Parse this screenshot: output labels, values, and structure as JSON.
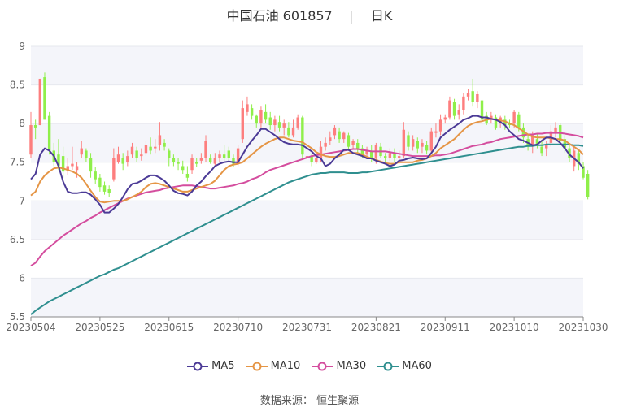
{
  "header": {
    "stock_name": "中国石油 601857",
    "period": "日K"
  },
  "source": {
    "label": "数据来源：",
    "provider": "恒生聚源"
  },
  "colors": {
    "up": "#fd7e7e",
    "down": "#8fef4a",
    "ma5": "#4b3a96",
    "ma10": "#e59545",
    "ma30": "#d44d9e",
    "ma60": "#2f8f8f",
    "grid": "#e6e8ee",
    "band": "#f4f5fa",
    "axis": "#888888"
  },
  "chart_data": {
    "type": "candlestick",
    "title": "中国石油 601857 日K",
    "xlabel": "",
    "ylabel": "",
    "ylim": [
      5.5,
      9
    ],
    "yticks": [
      5.5,
      6,
      6.5,
      7,
      7.5,
      8,
      8.5,
      9
    ],
    "xtick_labels": [
      "20230504",
      "20230525",
      "20230615",
      "20230710",
      "20230731",
      "20230821",
      "20230911",
      "20231010",
      "20231030"
    ],
    "xtick_index": [
      0,
      15,
      30,
      45,
      60,
      75,
      90,
      105,
      120
    ],
    "grid": true,
    "legend": [
      "MA5",
      "MA10",
      "MA30",
      "MA60"
    ],
    "legend_position": "bottom",
    "candles": [
      [
        7.6,
        7.98,
        7.55,
        8.15
      ],
      [
        7.98,
        7.95,
        7.8,
        8.05
      ],
      [
        7.98,
        8.58,
        7.98,
        8.58
      ],
      [
        8.6,
        8.05,
        8.05,
        8.66
      ],
      [
        8.1,
        7.65,
        7.6,
        8.15
      ],
      [
        7.65,
        7.5,
        7.45,
        7.75
      ],
      [
        7.6,
        7.45,
        7.4,
        7.8
      ],
      [
        7.58,
        7.38,
        7.3,
        7.7
      ],
      [
        7.4,
        7.45,
        7.33,
        7.55
      ],
      [
        7.45,
        7.48,
        7.4,
        7.7
      ],
      [
        7.4,
        7.45,
        7.3,
        7.5
      ],
      [
        7.6,
        7.68,
        7.55,
        7.78
      ],
      [
        7.65,
        7.55,
        7.5,
        7.68
      ],
      [
        7.55,
        7.38,
        7.3,
        7.62
      ],
      [
        7.38,
        7.28,
        7.22,
        7.44
      ],
      [
        7.3,
        7.18,
        7.12,
        7.35
      ],
      [
        7.2,
        7.12,
        7.08,
        7.25
      ],
      [
        7.15,
        7.1,
        7.05,
        7.2
      ],
      [
        7.28,
        7.55,
        7.25,
        7.68
      ],
      [
        7.5,
        7.6,
        7.48,
        7.7
      ],
      [
        7.55,
        7.48,
        7.4,
        7.62
      ],
      [
        7.5,
        7.58,
        7.45,
        7.65
      ],
      [
        7.6,
        7.7,
        7.55,
        7.75
      ],
      [
        7.65,
        7.55,
        7.5,
        7.7
      ],
      [
        7.58,
        7.6,
        7.52,
        7.68
      ],
      [
        7.62,
        7.72,
        7.58,
        7.78
      ],
      [
        7.7,
        7.65,
        7.6,
        7.82
      ],
      [
        7.68,
        7.7,
        7.62,
        7.8
      ],
      [
        7.72,
        7.85,
        7.65,
        8.02
      ],
      [
        7.75,
        7.7,
        7.65,
        7.8
      ],
      [
        7.65,
        7.55,
        7.45,
        7.68
      ],
      [
        7.55,
        7.5,
        7.45,
        7.6
      ],
      [
        7.5,
        7.48,
        7.4,
        7.55
      ],
      [
        7.45,
        7.4,
        7.35,
        7.52
      ],
      [
        7.35,
        7.3,
        7.25,
        7.45
      ],
      [
        7.4,
        7.55,
        7.35,
        7.6
      ],
      [
        7.5,
        7.48,
        7.44,
        7.55
      ],
      [
        7.52,
        7.56,
        7.48,
        7.62
      ],
      [
        7.55,
        7.78,
        7.5,
        7.85
      ],
      [
        7.55,
        7.5,
        7.48,
        7.6
      ],
      [
        7.48,
        7.55,
        7.45,
        7.62
      ],
      [
        7.55,
        7.6,
        7.5,
        7.65
      ],
      [
        7.6,
        7.55,
        7.52,
        7.72
      ],
      [
        7.65,
        7.55,
        7.5,
        7.7
      ],
      [
        7.55,
        7.48,
        7.44,
        7.6
      ],
      [
        7.48,
        7.68,
        7.45,
        7.72
      ],
      [
        7.8,
        8.2,
        7.75,
        8.3
      ],
      [
        8.15,
        8.25,
        8.1,
        8.35
      ],
      [
        8.2,
        8.1,
        8.05,
        8.25
      ],
      [
        8.1,
        8.0,
        7.95,
        8.12
      ],
      [
        8.0,
        8.18,
        7.95,
        8.22
      ],
      [
        8.15,
        8.05,
        8.0,
        8.25
      ],
      [
        8.08,
        7.98,
        7.92,
        8.15
      ],
      [
        7.98,
        8.05,
        7.9,
        8.1
      ],
      [
        8.02,
        7.95,
        7.9,
        8.1
      ],
      [
        7.95,
        8.0,
        7.85,
        8.05
      ],
      [
        7.95,
        7.85,
        7.82,
        8.02
      ],
      [
        7.85,
        7.95,
        7.82,
        8.05
      ],
      [
        7.95,
        8.08,
        7.92,
        8.12
      ],
      [
        8.08,
        7.6,
        7.55,
        8.1
      ],
      [
        7.55,
        7.58,
        7.4,
        7.62
      ],
      [
        7.58,
        7.5,
        7.45,
        7.6
      ],
      [
        7.5,
        7.55,
        7.48,
        7.6
      ],
      [
        7.55,
        7.7,
        7.5,
        7.78
      ],
      [
        7.7,
        7.75,
        7.65,
        7.82
      ],
      [
        7.78,
        7.82,
        7.72,
        7.9
      ],
      [
        7.85,
        7.95,
        7.8,
        7.98
      ],
      [
        7.9,
        7.8,
        7.75,
        7.95
      ],
      [
        7.8,
        7.88,
        7.75,
        7.9
      ],
      [
        7.85,
        7.7,
        7.65,
        7.88
      ],
      [
        7.72,
        7.78,
        7.68,
        7.8
      ],
      [
        7.75,
        7.68,
        7.62,
        7.8
      ],
      [
        7.68,
        7.6,
        7.55,
        7.72
      ],
      [
        7.6,
        7.65,
        7.55,
        7.7
      ],
      [
        7.65,
        7.55,
        7.5,
        7.72
      ],
      [
        7.55,
        7.72,
        7.48,
        7.75
      ],
      [
        7.7,
        7.58,
        7.55,
        7.75
      ],
      [
        7.58,
        7.55,
        7.5,
        7.62
      ],
      [
        7.55,
        7.62,
        7.52,
        7.68
      ],
      [
        7.62,
        7.55,
        7.5,
        7.68
      ],
      [
        7.55,
        7.58,
        7.48,
        7.65
      ],
      [
        7.58,
        7.92,
        7.55,
        8.02
      ],
      [
        7.85,
        7.7,
        7.65,
        7.9
      ],
      [
        7.7,
        7.8,
        7.65,
        7.85
      ],
      [
        7.78,
        7.68,
        7.62,
        7.82
      ],
      [
        7.7,
        7.75,
        7.62,
        7.8
      ],
      [
        7.72,
        7.65,
        7.6,
        7.78
      ],
      [
        7.65,
        7.9,
        7.6,
        7.95
      ],
      [
        7.88,
        7.9,
        7.82,
        8.0
      ],
      [
        7.9,
        8.05,
        7.85,
        8.12
      ],
      [
        8.05,
        8.08,
        8.0,
        8.12
      ],
      [
        8.08,
        8.3,
        8.05,
        8.35
      ],
      [
        8.28,
        8.1,
        8.05,
        8.32
      ],
      [
        8.12,
        8.18,
        8.05,
        8.25
      ],
      [
        8.18,
        8.35,
        8.12,
        8.4
      ],
      [
        8.35,
        8.4,
        8.3,
        8.45
      ],
      [
        8.42,
        8.28,
        8.22,
        8.58
      ],
      [
        8.28,
        8.38,
        8.2,
        8.42
      ],
      [
        8.3,
        8.05,
        8.0,
        8.32
      ],
      [
        8.1,
        8.0,
        7.98,
        8.15
      ],
      [
        8.05,
        8.1,
        8.0,
        8.15
      ],
      [
        8.08,
        7.95,
        7.92,
        8.12
      ],
      [
        8.0,
        8.08,
        7.95,
        8.1
      ],
      [
        8.05,
        7.98,
        7.92,
        8.1
      ],
      [
        8.0,
        7.98,
        7.95,
        8.05
      ],
      [
        8.0,
        8.15,
        7.95,
        8.18
      ],
      [
        8.12,
        7.95,
        7.9,
        8.15
      ],
      [
        7.95,
        7.82,
        7.75,
        8.0
      ],
      [
        7.8,
        7.7,
        7.65,
        7.85
      ],
      [
        7.72,
        7.85,
        7.62,
        7.9
      ],
      [
        7.8,
        7.72,
        7.68,
        7.88
      ],
      [
        7.7,
        7.62,
        7.58,
        7.78
      ],
      [
        7.68,
        7.72,
        7.58,
        7.78
      ],
      [
        7.75,
        7.9,
        7.7,
        7.98
      ],
      [
        7.88,
        7.95,
        7.82,
        8.02
      ],
      [
        7.98,
        7.78,
        7.75,
        8.0
      ],
      [
        7.8,
        7.68,
        7.62,
        7.85
      ],
      [
        7.68,
        7.55,
        7.5,
        7.72
      ],
      [
        7.45,
        7.65,
        7.38,
        7.7
      ],
      [
        7.62,
        7.48,
        7.4,
        7.66
      ],
      [
        7.45,
        7.3,
        7.28,
        7.5
      ],
      [
        7.35,
        7.05,
        7.02,
        7.4
      ]
    ],
    "series": [
      {
        "name": "MA5",
        "values": [
          7.28,
          7.35,
          7.6,
          7.68,
          7.65,
          7.58,
          7.45,
          7.25,
          7.12,
          7.1,
          7.1,
          7.11,
          7.11,
          7.08,
          7.02,
          6.95,
          6.85,
          6.85,
          6.9,
          6.96,
          7.05,
          7.15,
          7.22,
          7.23,
          7.26,
          7.3,
          7.33,
          7.33,
          7.3,
          7.26,
          7.2,
          7.13,
          7.1,
          7.09,
          7.07,
          7.12,
          7.2,
          7.25,
          7.32,
          7.38,
          7.45,
          7.48,
          7.5,
          7.51,
          7.5,
          7.5,
          7.6,
          7.7,
          7.78,
          7.85,
          7.93,
          7.93,
          7.89,
          7.85,
          7.8,
          7.76,
          7.74,
          7.73,
          7.73,
          7.72,
          7.68,
          7.64,
          7.58,
          7.55,
          7.45,
          7.48,
          7.55,
          7.6,
          7.66,
          7.66,
          7.62,
          7.6,
          7.58,
          7.55,
          7.55,
          7.52,
          7.5,
          7.48,
          7.45,
          7.47,
          7.52,
          7.53,
          7.55,
          7.56,
          7.55,
          7.54,
          7.55,
          7.62,
          7.7,
          7.82,
          7.87,
          7.92,
          7.96,
          8.0,
          8.05,
          8.07,
          8.1,
          8.1,
          8.08,
          8.08,
          8.06,
          8.05,
          8.02,
          7.98,
          7.9,
          7.85,
          7.8,
          7.78,
          7.75,
          7.72,
          7.73,
          7.78,
          7.82,
          7.82,
          7.8,
          7.75,
          7.68,
          7.6,
          7.55,
          7.5,
          7.42
        ]
      },
      {
        "name": "MA10",
        "values": [
          7.07,
          7.12,
          7.25,
          7.33,
          7.38,
          7.42,
          7.43,
          7.42,
          7.4,
          7.38,
          7.35,
          7.3,
          7.22,
          7.13,
          7.05,
          6.99,
          6.98,
          6.99,
          7.0,
          7.0,
          7.0,
          7.02,
          7.05,
          7.08,
          7.12,
          7.18,
          7.22,
          7.23,
          7.22,
          7.2,
          7.18,
          7.16,
          7.14,
          7.12,
          7.12,
          7.14,
          7.16,
          7.18,
          7.2,
          7.22,
          7.26,
          7.33,
          7.4,
          7.45,
          7.47,
          7.48,
          7.5,
          7.55,
          7.6,
          7.65,
          7.7,
          7.74,
          7.77,
          7.8,
          7.82,
          7.82,
          7.8,
          7.78,
          7.77,
          7.76,
          7.72,
          7.68,
          7.63,
          7.6,
          7.58,
          7.57,
          7.57,
          7.58,
          7.6,
          7.62,
          7.62,
          7.62,
          7.6,
          7.57,
          7.55,
          7.53,
          7.51,
          7.49,
          7.48,
          7.48,
          7.5,
          7.5,
          7.5,
          7.5,
          7.52,
          7.53,
          7.55,
          7.58,
          7.62,
          7.68,
          7.72,
          7.76,
          7.8,
          7.86,
          7.92,
          7.97,
          8.0,
          8.02,
          8.03,
          8.05,
          8.06,
          8.05,
          8.04,
          8.03,
          8.0,
          7.98,
          7.94,
          7.9,
          7.86,
          7.83,
          7.82,
          7.82,
          7.82,
          7.81,
          7.8,
          7.8,
          7.78,
          7.74,
          7.7,
          7.66,
          7.6
        ]
      },
      {
        "name": "MA30",
        "values": [
          6.16,
          6.2,
          6.28,
          6.35,
          6.4,
          6.45,
          6.5,
          6.55,
          6.59,
          6.63,
          6.67,
          6.71,
          6.74,
          6.78,
          6.81,
          6.85,
          6.88,
          6.91,
          6.94,
          6.97,
          7.0,
          7.03,
          7.05,
          7.07,
          7.09,
          7.11,
          7.12,
          7.13,
          7.14,
          7.16,
          7.17,
          7.18,
          7.19,
          7.2,
          7.2,
          7.2,
          7.19,
          7.18,
          7.17,
          7.16,
          7.16,
          7.17,
          7.18,
          7.19,
          7.2,
          7.22,
          7.23,
          7.25,
          7.28,
          7.3,
          7.33,
          7.37,
          7.4,
          7.42,
          7.44,
          7.46,
          7.48,
          7.5,
          7.52,
          7.54,
          7.56,
          7.58,
          7.59,
          7.6,
          7.61,
          7.62,
          7.63,
          7.64,
          7.65,
          7.66,
          7.67,
          7.67,
          7.66,
          7.65,
          7.64,
          7.64,
          7.64,
          7.64,
          7.63,
          7.62,
          7.61,
          7.6,
          7.59,
          7.58,
          7.58,
          7.58,
          7.58,
          7.58,
          7.59,
          7.59,
          7.6,
          7.61,
          7.63,
          7.65,
          7.67,
          7.69,
          7.71,
          7.72,
          7.73,
          7.75,
          7.76,
          7.78,
          7.8,
          7.81,
          7.82,
          7.83,
          7.84,
          7.85,
          7.86,
          7.86,
          7.87,
          7.87,
          7.88,
          7.88,
          7.88,
          7.88,
          7.87,
          7.86,
          7.85,
          7.84,
          7.82
        ]
      },
      {
        "name": "MA60",
        "values": [
          5.53,
          5.58,
          5.62,
          5.66,
          5.7,
          5.73,
          5.76,
          5.79,
          5.82,
          5.85,
          5.88,
          5.91,
          5.94,
          5.97,
          6.0,
          6.03,
          6.05,
          6.08,
          6.11,
          6.13,
          6.16,
          6.19,
          6.22,
          6.25,
          6.28,
          6.31,
          6.34,
          6.37,
          6.4,
          6.43,
          6.46,
          6.49,
          6.52,
          6.55,
          6.58,
          6.61,
          6.64,
          6.67,
          6.7,
          6.73,
          6.76,
          6.79,
          6.82,
          6.85,
          6.88,
          6.91,
          6.94,
          6.97,
          7.0,
          7.03,
          7.06,
          7.09,
          7.12,
          7.15,
          7.18,
          7.21,
          7.24,
          7.26,
          7.28,
          7.3,
          7.32,
          7.34,
          7.35,
          7.36,
          7.36,
          7.37,
          7.37,
          7.37,
          7.37,
          7.36,
          7.36,
          7.36,
          7.37,
          7.37,
          7.38,
          7.39,
          7.4,
          7.41,
          7.42,
          7.43,
          7.44,
          7.45,
          7.46,
          7.47,
          7.48,
          7.49,
          7.5,
          7.51,
          7.52,
          7.53,
          7.54,
          7.55,
          7.56,
          7.57,
          7.58,
          7.59,
          7.6,
          7.61,
          7.62,
          7.63,
          7.64,
          7.65,
          7.66,
          7.67,
          7.68,
          7.69,
          7.7,
          7.7,
          7.71,
          7.71,
          7.72,
          7.72,
          7.73,
          7.73,
          7.73,
          7.73,
          7.73,
          7.73,
          7.72,
          7.72,
          7.71
        ]
      }
    ]
  }
}
